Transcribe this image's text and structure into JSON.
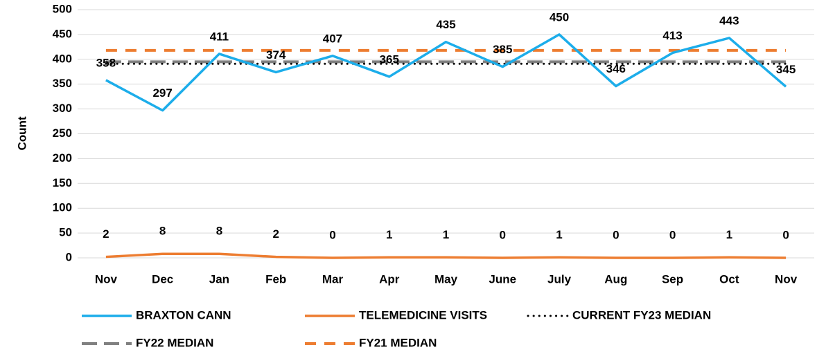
{
  "chart_data": {
    "type": "line",
    "y_label": "Count",
    "categories": [
      "Nov",
      "Dec",
      "Jan",
      "Feb",
      "Mar",
      "Apr",
      "May",
      "June",
      "July",
      "Aug",
      "Sep",
      "Oct",
      "Nov"
    ],
    "series": [
      {
        "name": "BRAXTON CANN",
        "color": "#1cadea",
        "style": "solid",
        "data_labels": true,
        "values": [
          358,
          297,
          411,
          374,
          407,
          365,
          435,
          385,
          450,
          346,
          413,
          443,
          345
        ]
      },
      {
        "name": "TELEMEDICINE VISITS",
        "color": "#ed7d31",
        "style": "solid",
        "data_labels": true,
        "values": [
          2,
          8,
          8,
          2,
          0,
          1,
          1,
          0,
          1,
          0,
          0,
          1,
          0
        ]
      },
      {
        "name": "CURRENT FY23 MEDIAN",
        "color": "#000000",
        "style": "dotted",
        "data_labels": false,
        "values": [
          391,
          391,
          391,
          391,
          391,
          391,
          391,
          391,
          391,
          391,
          391,
          391,
          391
        ]
      },
      {
        "name": "FY22 MEDIAN",
        "color": "#808080",
        "style": "dashed",
        "data_labels": false,
        "values": [
          395,
          395,
          395,
          395,
          395,
          395,
          395,
          395,
          395,
          395,
          395,
          395,
          395
        ]
      },
      {
        "name": "FY21 MEDIAN",
        "color": "#ed7d31",
        "style": "dashed",
        "data_labels": false,
        "values": [
          418,
          418,
          418,
          418,
          418,
          418,
          418,
          418,
          418,
          418,
          418,
          418,
          418
        ]
      }
    ],
    "ylim": [
      0,
      500
    ],
    "yticks": [
      0,
      50,
      100,
      150,
      200,
      250,
      300,
      350,
      400,
      450,
      500
    ],
    "grid": true,
    "legend": "bottom"
  }
}
